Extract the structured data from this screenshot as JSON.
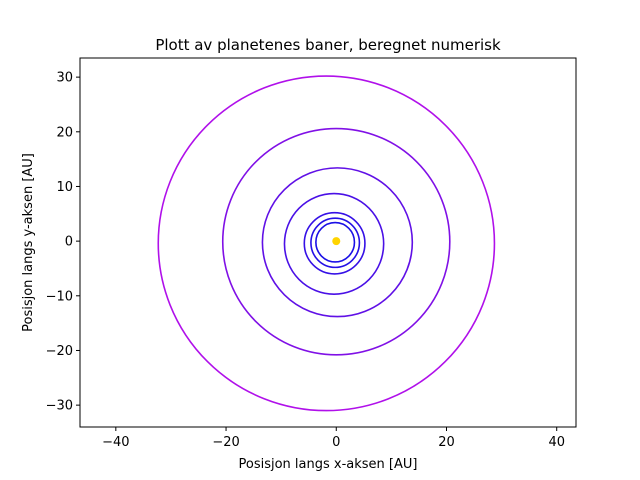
{
  "chart_data": {
    "type": "line",
    "title": "Plott av planetenes baner, beregnet numerisk",
    "xlabel": "Posisjon langs x-aksen [AU]",
    "ylabel": "Posisjon langs y-aksen [AU]",
    "xlim": [
      -46.5,
      43.5
    ],
    "ylim": [
      -34,
      33.5
    ],
    "xticks": [
      -40,
      -20,
      0,
      20,
      40
    ],
    "yticks": [
      -30,
      -20,
      -10,
      0,
      10,
      20,
      30
    ],
    "grid": false,
    "star": {
      "x": 0,
      "y": 0,
      "color": "#ffd400"
    },
    "series": [
      {
        "cx": -0.2,
        "cy": -0.2,
        "rx": 3.5,
        "ry": 3.6,
        "color": "#1b10e6"
      },
      {
        "cx": -0.2,
        "cy": -0.3,
        "rx": 4.4,
        "ry": 4.5,
        "color": "#2410e6"
      },
      {
        "cx": -0.3,
        "cy": -0.4,
        "rx": 5.5,
        "ry": 5.6,
        "color": "#3510e6"
      },
      {
        "cx": -0.4,
        "cy": -0.5,
        "rx": 9.0,
        "ry": 9.2,
        "color": "#4a10e6"
      },
      {
        "cx": 0.2,
        "cy": -0.2,
        "rx": 13.6,
        "ry": 13.6,
        "color": "#6010e6"
      },
      {
        "cx": 0.0,
        "cy": -0.1,
        "rx": 20.6,
        "ry": 20.7,
        "color": "#8010e6"
      },
      {
        "cx": -1.8,
        "cy": -0.4,
        "rx": 30.5,
        "ry": 30.6,
        "color": "#b010ea"
      }
    ]
  }
}
